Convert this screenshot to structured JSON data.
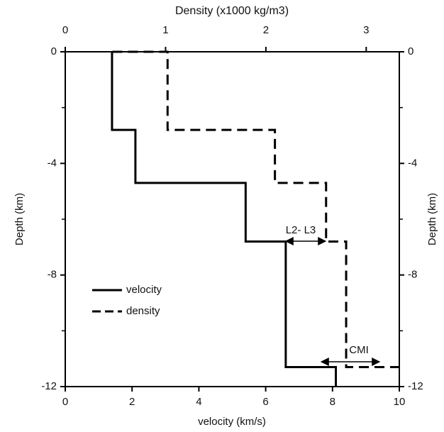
{
  "chart_data": {
    "type": "line",
    "x_label": "velocity (km/s)",
    "x2_label": "Density (x1000 kg/m3)",
    "y_label": "Depth (km)",
    "xlim": [
      0,
      10
    ],
    "xticks": [
      0,
      2,
      4,
      6,
      8,
      10
    ],
    "x2lim": [
      0,
      3.33
    ],
    "x2ticks": [
      0,
      1,
      2,
      3
    ],
    "ylim": [
      -12,
      0
    ],
    "yticks": [
      0,
      -4,
      -8,
      -12
    ],
    "yminorticks": [
      -2,
      -6,
      -10
    ],
    "series": [
      {
        "name": "velocity",
        "color": "#000",
        "dash": false,
        "axis": "x",
        "x": [
          1.4,
          1.4,
          2.1,
          2.1,
          5.4,
          5.4,
          6.6,
          6.6,
          8.1,
          8.1
        ],
        "values": [
          0,
          -2.8,
          -2.8,
          -4.7,
          -4.7,
          -6.8,
          -6.8,
          -11.3,
          -11.3,
          -12
        ]
      },
      {
        "name": "density",
        "color": "#000",
        "dash": true,
        "axis": "x2",
        "x": [
          0.47,
          1.02,
          1.02,
          2.09,
          2.09,
          2.6,
          2.6,
          2.8,
          2.8,
          3.33
        ],
        "values": [
          0,
          0,
          -2.8,
          -2.8,
          -4.7,
          -4.7,
          -6.8,
          -6.8,
          -11.3,
          -11.3
        ]
      }
    ],
    "annotations": [
      "L2- L3",
      "CMI"
    ],
    "legend": "lower left"
  }
}
